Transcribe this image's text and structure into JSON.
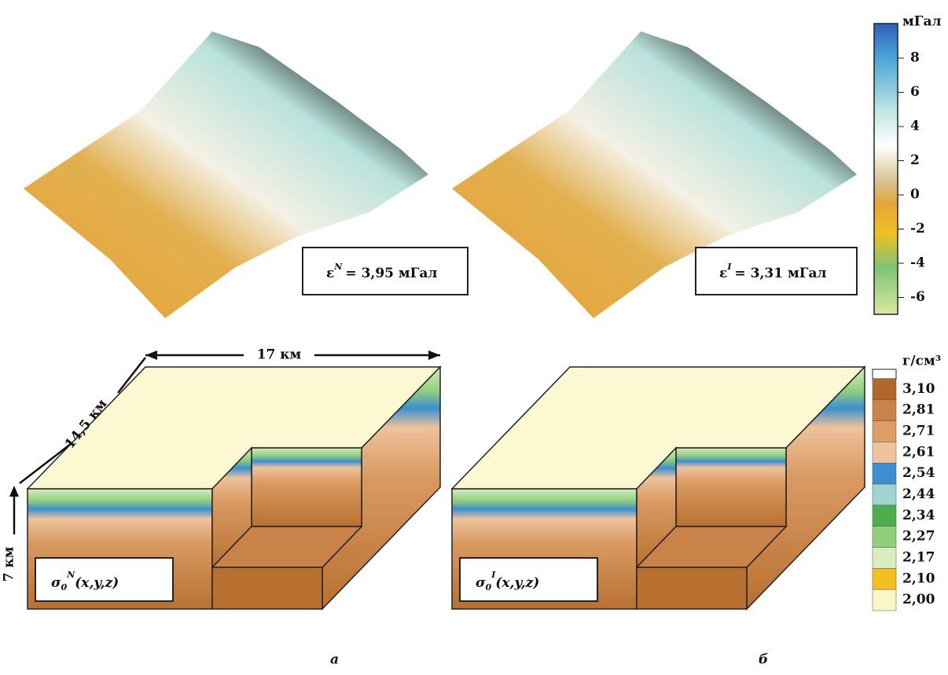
{
  "top_panels": [
    {
      "symbol": "ε",
      "index": "N",
      "text": "= 3,95 мГал"
    },
    {
      "symbol": "ε",
      "index": "I",
      "text": "= 3,31 мГал"
    }
  ],
  "anomaly_scale": {
    "unit": "мГал",
    "ticks": [
      "8",
      "6",
      "4",
      "2",
      "0",
      "-2",
      "-4",
      "-6"
    ]
  },
  "bottom_panels": [
    {
      "symbol": "σ",
      "subscript": "0",
      "index": "N",
      "text": "(x,y,z)"
    },
    {
      "symbol": "σ",
      "subscript": "0",
      "index": "I",
      "text": "(x,y,z)"
    }
  ],
  "dimensions": {
    "width": "17 км",
    "depth": "14,5 км",
    "height": "7 км"
  },
  "density_scale": {
    "unit": "г/см³",
    "entries": [
      {
        "label": "3,10",
        "color": "#b0682a"
      },
      {
        "label": "2,81",
        "color": "#c98349"
      },
      {
        "label": "2,71",
        "color": "#dc9d66"
      },
      {
        "label": "2,61",
        "color": "#eec29c"
      },
      {
        "label": "2,54",
        "color": "#3b8fd0"
      },
      {
        "label": "2,44",
        "color": "#9fd4d0"
      },
      {
        "label": "2,34",
        "color": "#4caf4c"
      },
      {
        "label": "2,27",
        "color": "#92cf7c"
      },
      {
        "label": "2,17",
        "color": "#d9ecc2"
      },
      {
        "label": "2,10",
        "color": "#f2c020"
      },
      {
        "label": "2,00",
        "color": "#fbf6c8"
      }
    ]
  },
  "captions": [
    "а",
    "б"
  ]
}
